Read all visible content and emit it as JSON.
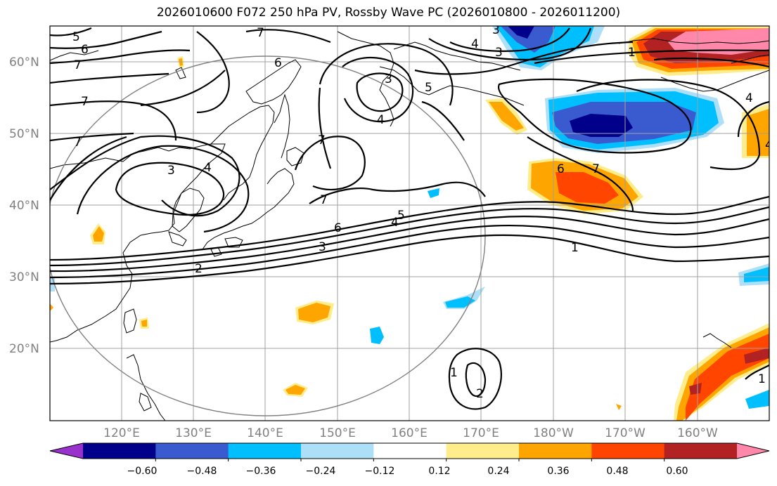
{
  "title": "2026010600 F072 250 hPa PV, Rossby Wave PC (2026010800 - 2026011200)",
  "lat_labels": [
    "60°N",
    "50°N",
    "40°N",
    "30°N",
    "20°N"
  ],
  "lon_labels": [
    "120°E",
    "130°E",
    "140°E",
    "150°E",
    "160°E",
    "170°E",
    "180°W",
    "170°W",
    "160°W"
  ],
  "colorbar": {
    "colors": [
      "#9932CC",
      "#00008B",
      "#3A5BD0",
      "#00BFFF",
      "#ADDFF8",
      "#FFFFFF",
      "#FFEC8B",
      "#FFA500",
      "#FF4500",
      "#B22222",
      "#FF88AA"
    ],
    "tick_labels": [
      "−0.60",
      "−0.48",
      "−0.36",
      "−0.24",
      "−0.12",
      "0.12",
      "0.24",
      "0.36",
      "0.48",
      "0.60"
    ]
  },
  "contour_labels": [
    "5",
    "6",
    "7",
    "7",
    "7",
    "3",
    "4",
    "3",
    "4",
    "6",
    "7",
    "5",
    "4",
    "3",
    "7",
    "3",
    "4",
    "7",
    "6",
    "5",
    "4",
    "3",
    "2",
    "1",
    "6",
    "7",
    "1",
    "4",
    "1",
    "2",
    "1"
  ],
  "colors": {
    "grid": "#a0a0a0",
    "contour": "#000000",
    "coast": "#000000",
    "circle": "#808080"
  }
}
